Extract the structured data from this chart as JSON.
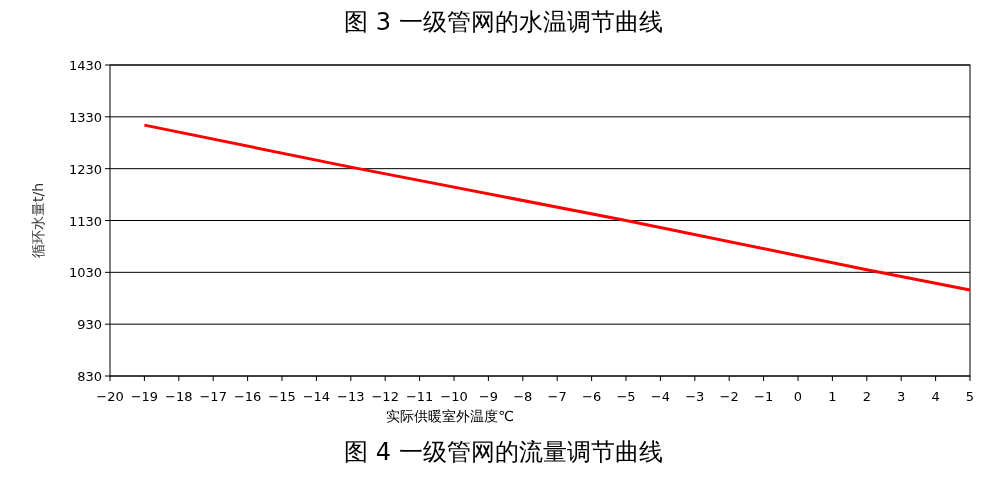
{
  "chart_data": {
    "type": "line",
    "title": "图 3 一级管网的水温调节曲线",
    "xlabel": "实际供暖室外温度℃",
    "ylabel": "循环水量t/h",
    "annotations": [
      "图 4 一级管网的流量调节曲线"
    ],
    "x": [
      -19,
      -13,
      -5,
      2,
      5
    ],
    "series": [
      {
        "color": "#ff0000",
        "values": [
          1314,
          1233,
          1130,
          1035,
          996
        ]
      }
    ],
    "xlim": [
      -20,
      5
    ],
    "xticks": [
      -20,
      -19,
      -18,
      -17,
      -16,
      -15,
      -14,
      -13,
      -12,
      -11,
      -10,
      -9,
      -8,
      -7,
      -6,
      -5,
      -4,
      -3,
      -2,
      -1,
      0,
      1,
      2,
      3,
      4,
      5
    ],
    "ylim": [
      830,
      1430
    ],
    "yticks": [
      830,
      930,
      1030,
      1130,
      1230,
      1330,
      1430
    ],
    "grid": "y",
    "marker": "none",
    "line_style": "solid"
  }
}
